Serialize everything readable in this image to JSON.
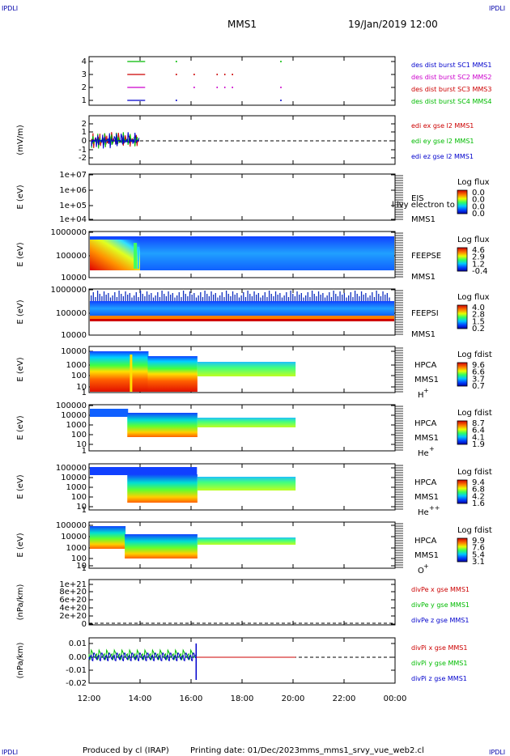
{
  "header": {
    "corner_left": "IPDLI",
    "corner_right": "IPDLI",
    "title": "MMS1",
    "datetime": "19/Jan/2019 12:00"
  },
  "footer": {
    "credit": "Produced by cl (IRAP)",
    "print_date": "Printing date: 01/Dec/2023",
    "script": "mms_mms1_srvy_vue_web2.cl",
    "corner_left": "IPDLI",
    "corner_right": "IPDLI"
  },
  "x_axis": {
    "ticks": [
      "12:00",
      "14:00",
      "16:00",
      "18:00",
      "20:00",
      "22:00",
      "00:00"
    ]
  },
  "chart_data": [
    {
      "type": "line",
      "panel": "burst",
      "yticks": [
        "4",
        "3",
        "2",
        "1"
      ],
      "legend": [
        {
          "label": "des dist burst SC1 MMS1",
          "color": "#0000cc"
        },
        {
          "label": "des dist burst SC2 MMS2",
          "color": "#cc00cc"
        },
        {
          "label": "des dist burst SC3 MMS3",
          "color": "#cc0000"
        },
        {
          "label": "des dist burst SC4 MMS4",
          "color": "#00bb00"
        }
      ]
    },
    {
      "type": "line",
      "panel": "edi",
      "ylabel": "(mV/m)",
      "yticks": [
        "2",
        "1",
        "0",
        "-1",
        "-2"
      ],
      "legend": [
        {
          "label": "edi ex gse l2 MMS1",
          "color": "#cc0000"
        },
        {
          "label": "edi ey gse l2 MMS1",
          "color": "#00bb00"
        },
        {
          "label": "edi ez gse l2 MMS1",
          "color": "#0000cc"
        }
      ]
    },
    {
      "type": "heatmap",
      "panel": "eis",
      "ylabel": "E (eV)",
      "yticks": [
        "1e+07",
        "1e+06",
        "1e+05",
        "1e+04"
      ],
      "label1": "EIS",
      "label2": "MMS1",
      "overlay_text": "l ivy electron to",
      "colorbar_title": "Log flux",
      "colorbar_ticks": [
        "0.0",
        "0.0",
        "0.0",
        "0.0"
      ]
    },
    {
      "type": "heatmap",
      "panel": "feepse",
      "ylabel": "E (eV)",
      "yticks": [
        "1000000",
        "100000",
        "10000"
      ],
      "label1": "FEEPSE",
      "label2": "MMS1",
      "colorbar_title": "Log flux",
      "colorbar_ticks": [
        "4.6",
        "2.9",
        "1.2",
        "-0.4"
      ]
    },
    {
      "type": "heatmap",
      "panel": "feepsi",
      "ylabel": "E (eV)",
      "yticks": [
        "1000000",
        "100000",
        "10000"
      ],
      "label1": "FEEPSI",
      "label2": "MMS1",
      "colorbar_title": "Log flux",
      "colorbar_ticks": [
        "4.0",
        "2.8",
        "1.5",
        "0.2"
      ]
    },
    {
      "type": "heatmap",
      "panel": "hpca-h",
      "ylabel": "E (eV)",
      "yticks": [
        "10000",
        "1000",
        "100",
        "10",
        "1"
      ],
      "label1": "HPCA",
      "label2": "MMS1",
      "species": "H",
      "charge": "+",
      "colorbar_title": "Log fdist",
      "colorbar_ticks": [
        "9.6",
        "6.6",
        "3.7",
        "0.7"
      ]
    },
    {
      "type": "heatmap",
      "panel": "hpca-he",
      "ylabel": "E (eV)",
      "yticks": [
        "100000",
        "10000",
        "1000",
        "100",
        "10",
        "1"
      ],
      "label1": "HPCA",
      "label2": "MMS1",
      "species": "He",
      "charge": "+",
      "colorbar_title": "Log fdist",
      "colorbar_ticks": [
        "8.7",
        "6.4",
        "4.1",
        "1.9"
      ]
    },
    {
      "type": "heatmap",
      "panel": "hpca-he2",
      "ylabel": "E (eV)",
      "yticks": [
        "100000",
        "10000",
        "1000",
        "100",
        "10",
        "1"
      ],
      "label1": "HPCA",
      "label2": "MMS1",
      "species": "He",
      "charge": "++",
      "colorbar_title": "Log fdist",
      "colorbar_ticks": [
        "9.4",
        "6.8",
        "4.2",
        "1.6"
      ]
    },
    {
      "type": "heatmap",
      "panel": "hpca-o",
      "ylabel": "E (eV)",
      "yticks": [
        "100000",
        "10000",
        "1000",
        "100",
        "10",
        "1"
      ],
      "label1": "HPCA",
      "label2": "MMS1",
      "species": "O",
      "charge": "+",
      "colorbar_title": "Log fdist",
      "colorbar_ticks": [
        "9.9",
        "7.6",
        "5.4",
        "3.1"
      ]
    },
    {
      "type": "line",
      "panel": "divpe",
      "ylabel": "(nPa/km)",
      "yticks": [
        "1e+21",
        "8e+20",
        "6e+20",
        "4e+20",
        "2e+20",
        "0"
      ],
      "legend": [
        {
          "label": "divPe x gse MMS1",
          "color": "#cc0000"
        },
        {
          "label": "divPe y gse MMS1",
          "color": "#00bb00"
        },
        {
          "label": "divPe z gse MMS1",
          "color": "#0000cc"
        }
      ]
    },
    {
      "type": "line",
      "panel": "divpi",
      "ylabel": "(nPa/km)",
      "yticks": [
        "0.01",
        "0.00",
        "-0.01",
        "-0.02"
      ],
      "legend": [
        {
          "label": "divPi x gse MMS1",
          "color": "#cc0000"
        },
        {
          "label": "divPi y gse MMS1",
          "color": "#00bb00"
        },
        {
          "label": "divPi z gse MMS1",
          "color": "#0000cc"
        }
      ]
    }
  ]
}
